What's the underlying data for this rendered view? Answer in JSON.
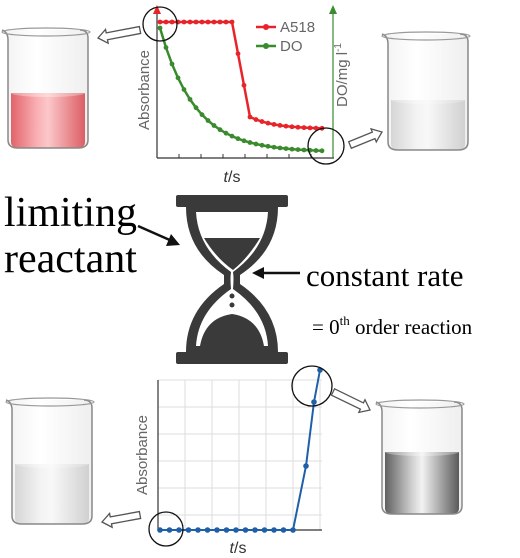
{
  "top_chart": {
    "y_label": "Absorbance",
    "y2_label": {
      "text": "DO/mg l",
      "sup": "-1"
    },
    "x_label": {
      "var": "t",
      "unit": "/s"
    },
    "legend": [
      {
        "name": "A518",
        "color": "#e8242a"
      },
      {
        "name": "DO",
        "color": "#3a8a2e"
      }
    ]
  },
  "hourglass": {
    "left_label": [
      "limiting",
      "reactant"
    ],
    "right_label": "constant rate",
    "note": {
      "prefix": "= 0",
      "sup": "th",
      "suffix": " order reaction"
    }
  },
  "bottom_chart": {
    "y_label": "Absorbance",
    "x_label": {
      "var": "t",
      "unit": "/s"
    },
    "line_color": "#1f5fa8"
  }
}
